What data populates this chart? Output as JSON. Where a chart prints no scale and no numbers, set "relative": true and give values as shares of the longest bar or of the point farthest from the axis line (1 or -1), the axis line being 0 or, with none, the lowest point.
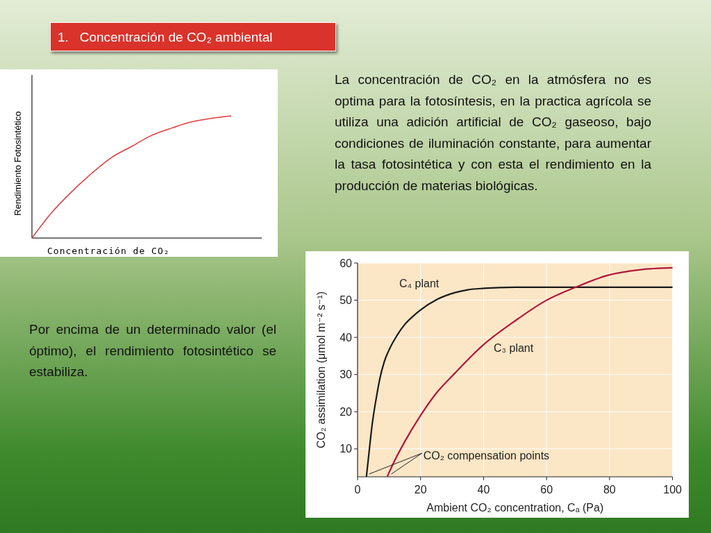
{
  "chart_data": [
    {
      "type": "other",
      "title": "1.   Concentración de CO₂ ambiental",
      "annotations": [
        "La concentración de CO₂ en la atmósfera no es optima para la fotosíntesis, en la practica agrícola se utiliza una adición artificial de CO₂ gaseoso, bajo condiciones de iluminación constante, para aumentar la tasa fotosintética y con esta el rendimiento en la producción de materias biológicas.",
        "Por encima de un determinado valor (el óptimo), el rendimiento fotosintético se estabiliza."
      ]
    },
    {
      "type": "line",
      "relative": true,
      "xlabel": "Concentración de CO₂",
      "ylabel": "Rendimiento Fotosintético",
      "categories": [
        null,
        null,
        null,
        null,
        null,
        null,
        null,
        null,
        null,
        null,
        null
      ],
      "series": [
        {
          "color": "#e03a3a",
          "values": [
            0,
            0.21,
            0.38,
            0.53,
            0.66,
            0.75,
            0.84,
            0.9,
            0.95,
            0.98,
            1
          ]
        }
      ]
    },
    {
      "type": "line",
      "xlabel": "Ambient CO₂ concentration, Cₐ (Pa)",
      "ylabel": "CO₂ assimilation (μmol m⁻² s⁻¹)",
      "xlim": [
        0,
        100
      ],
      "xticks": [
        0,
        20,
        40,
        60,
        80,
        100
      ],
      "ylim": [
        2.5,
        60
      ],
      "yticks": [
        10,
        20,
        30,
        40,
        50,
        60
      ],
      "grid": true,
      "annotations": [
        {
          "text": "CO₂ compensation points",
          "x": 2.8,
          "y": 2.5
        }
      ],
      "series": [
        {
          "name": "C₄ plant",
          "color": "#1a1a1a",
          "x": [
            2.8,
            3.5,
            4.7,
            6,
            7.1,
            8.5,
            10.2,
            12.5,
            15,
            17.5,
            19.7,
            25.2,
            30.7,
            35,
            40.2,
            50,
            100
          ],
          "values": [
            2.5,
            8,
            17,
            24,
            29,
            33.5,
            37,
            40.5,
            43.5,
            45.6,
            47.2,
            50.2,
            52,
            52.8,
            53.2,
            53.5,
            53.5
          ]
        },
        {
          "name": "C₃ plant",
          "color": "#b0173a",
          "x": [
            9.4,
            11,
            15,
            20,
            25,
            30.7,
            39.8,
            49.6,
            59.8,
            69.3,
            79.5,
            89.8,
            100
          ],
          "values": [
            2.5,
            5.5,
            12,
            19,
            25,
            30.2,
            37.9,
            44.2,
            49.9,
            53.5,
            56.7,
            58.2,
            58.7
          ]
        }
      ]
    }
  ]
}
